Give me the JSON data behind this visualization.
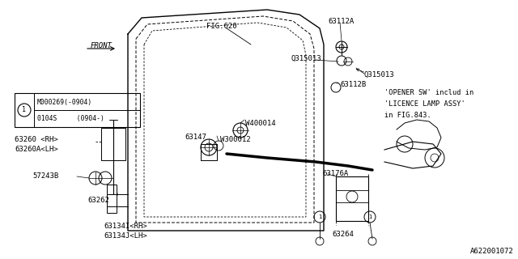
{
  "bg_color": "#ffffff",
  "line_color": "#000000",
  "fig_id": "A622001072",
  "note_lines": [
    "'OPENER SW' includ in",
    "'LICENCE LAMP ASSY'",
    "in FIG.843."
  ],
  "callout_lines": [
    "M000269(-0904)",
    "0104S     (0904-)"
  ]
}
